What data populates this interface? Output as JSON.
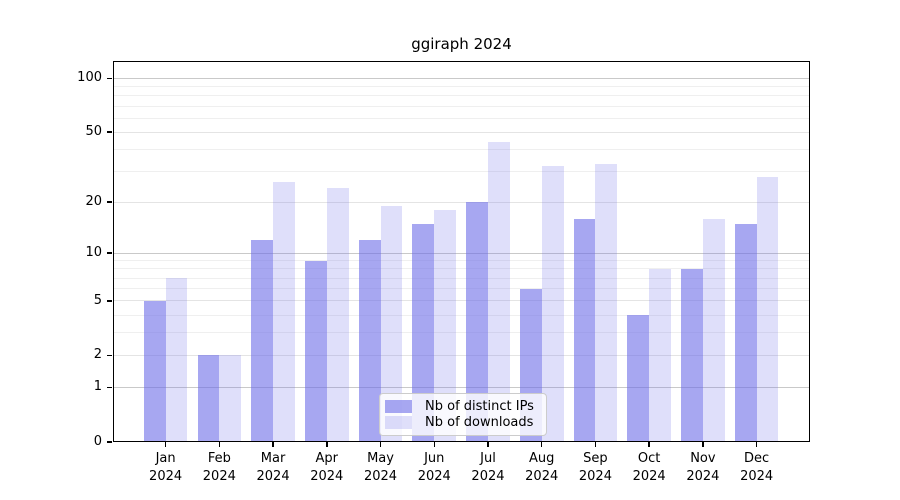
{
  "chart_data": {
    "type": "bar",
    "title": "ggiraph 2024",
    "categories": [
      "Jan",
      "Feb",
      "Mar",
      "Apr",
      "May",
      "Jun",
      "Jul",
      "Aug",
      "Sep",
      "Oct",
      "Nov",
      "Dec"
    ],
    "x_year_label": "2024",
    "series": [
      {
        "name": "Nb of distinct IPs",
        "color": "rgba(108,108,232,0.60)",
        "values": [
          5,
          2,
          12,
          9,
          12,
          15,
          20,
          6,
          16,
          4,
          8,
          15
        ]
      },
      {
        "name": "Nb of downloads",
        "color": "rgba(108,108,232,0.22)",
        "values": [
          7,
          2,
          26,
          24,
          19,
          18,
          44,
          32,
          33,
          8,
          16,
          28
        ]
      }
    ],
    "y_axis": {
      "scale": "log1p",
      "tick_labels": [
        0,
        1,
        2,
        5,
        10,
        20,
        50,
        100
      ],
      "max_value": 125
    },
    "grid": {
      "major": [
        1,
        10,
        100
      ],
      "labeled": [
        2,
        5,
        20,
        50
      ],
      "minor": [
        3,
        4,
        6,
        7,
        8,
        9,
        30,
        40,
        60,
        70,
        80,
        90
      ],
      "major_color": "#c9c9c9",
      "labeled_color": "#e4e4e4",
      "minor_color": "#efefef"
    },
    "legend_position": "lower center",
    "grid_on": true
  }
}
